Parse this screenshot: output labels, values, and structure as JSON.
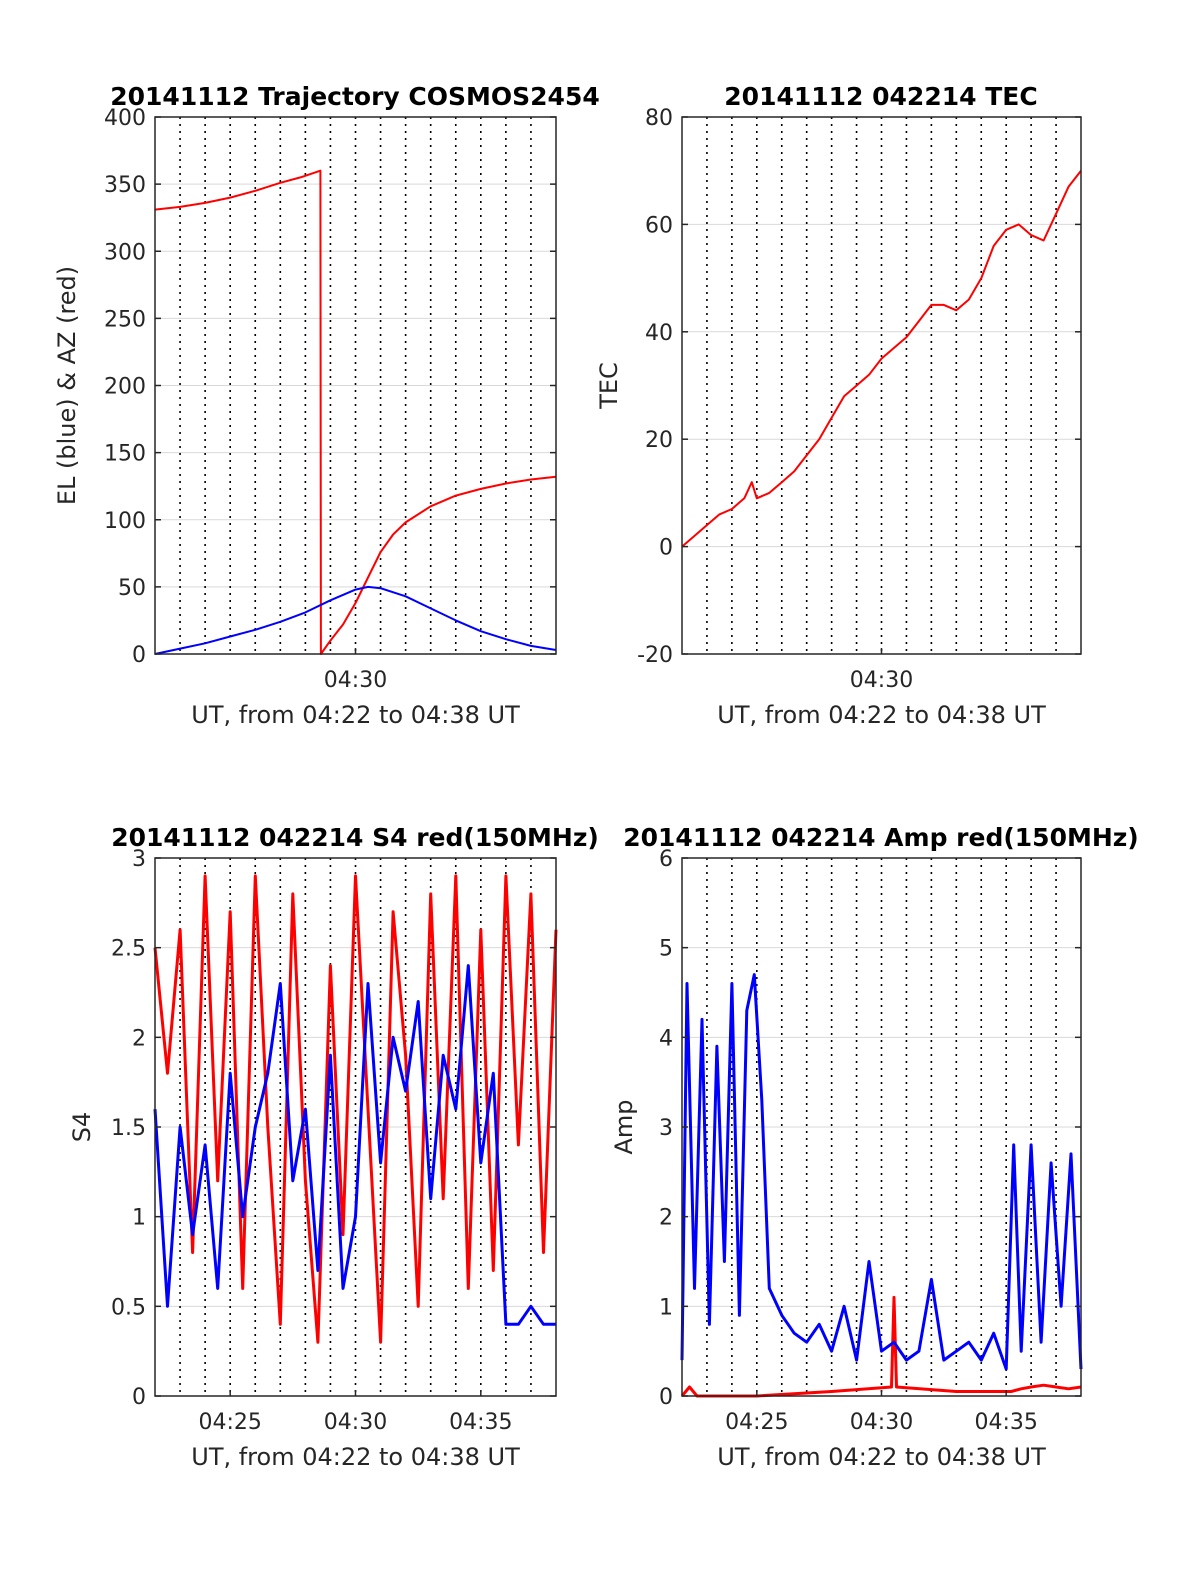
{
  "figure": {
    "x_axis_label": "UT, from 04:22 to 04:38 UT",
    "colors": {
      "azimuth": "#ff0000",
      "elevation": "#0000ff",
      "red_series": "#ff0000",
      "blue_series": "#0000ff",
      "grid": "#d9d9d9",
      "minute_lines": "#000000"
    }
  },
  "chart_data": [
    {
      "type": "line",
      "title": "20141112 Trajectory COSMOS2454",
      "xlabel": "UT, from 04:22 to 04:38 UT",
      "ylabel": "EL (blue) & AZ (red)",
      "xlim_minutes": [
        22,
        38
      ],
      "ylim": [
        0,
        400
      ],
      "yticks": [
        0,
        50,
        100,
        150,
        200,
        250,
        300,
        350,
        400
      ],
      "xticks": [
        {
          "minute": 30,
          "label": "04:30"
        }
      ],
      "grid": true,
      "dotted_minute_lines": true,
      "series": [
        {
          "color": "#ff0000",
          "x_minutes": [
            22.0,
            23.0,
            24.0,
            25.0,
            26.0,
            27.0,
            27.8,
            28.6,
            28.62,
            29.0,
            29.5,
            30.0,
            30.5,
            31.0,
            31.5,
            32.0,
            33.0,
            34.0,
            35.0,
            36.0,
            37.0,
            38.0
          ],
          "values": [
            331,
            333,
            336,
            340,
            345,
            351,
            355,
            360,
            0,
            10,
            22,
            38,
            57,
            76,
            89,
            98,
            110,
            118,
            123,
            127,
            130,
            132
          ]
        },
        {
          "color": "#0000ff",
          "x_minutes": [
            22.0,
            23.0,
            24.0,
            25.0,
            26.0,
            27.0,
            28.0,
            29.0,
            30.0,
            30.5,
            31.0,
            32.0,
            33.0,
            34.0,
            35.0,
            36.0,
            37.0,
            38.0
          ],
          "values": [
            0,
            4,
            8,
            13,
            18,
            24,
            31,
            40,
            48,
            50,
            49,
            43,
            34,
            25,
            17,
            11,
            6,
            3
          ]
        }
      ]
    },
    {
      "type": "line",
      "title": "20141112 042214 TEC",
      "xlabel": "UT, from 04:22 to 04:38 UT",
      "ylabel": "TEC",
      "xlim_minutes": [
        22,
        38
      ],
      "ylim": [
        -20,
        80
      ],
      "yticks": [
        -20,
        0,
        20,
        40,
        60,
        80
      ],
      "xticks": [
        {
          "minute": 30,
          "label": "04:30"
        }
      ],
      "grid": true,
      "dotted_minute_lines": true,
      "series": [
        {
          "color": "#ff0000",
          "x_minutes": [
            22.0,
            22.5,
            23.0,
            23.5,
            24.0,
            24.5,
            24.8,
            25.0,
            25.5,
            26.0,
            26.5,
            27.0,
            27.5,
            28.0,
            28.5,
            29.0,
            29.5,
            30.0,
            30.5,
            31.0,
            31.5,
            32.0,
            32.5,
            33.0,
            33.5,
            34.0,
            34.5,
            35.0,
            35.5,
            36.0,
            36.5,
            37.0,
            37.5,
            38.0
          ],
          "values": [
            0,
            2,
            4,
            6,
            7,
            9,
            12,
            9,
            10,
            12,
            14,
            17,
            20,
            24,
            28,
            30,
            32,
            35,
            37,
            39,
            42,
            45,
            45,
            44,
            46,
            50,
            56,
            59,
            60,
            58,
            57,
            62,
            67,
            70
          ]
        }
      ]
    },
    {
      "type": "line",
      "title": "20141112 042214 S4 red(150MHz)",
      "xlabel": "UT, from 04:22 to 04:38 UT",
      "ylabel": "S4",
      "xlim_minutes": [
        22,
        38
      ],
      "ylim": [
        0,
        3
      ],
      "yticks": [
        0,
        0.5,
        1,
        1.5,
        2,
        2.5,
        3
      ],
      "xticks": [
        {
          "minute": 25,
          "label": "04:25"
        },
        {
          "minute": 30,
          "label": "04:30"
        },
        {
          "minute": 35,
          "label": "04:35"
        }
      ],
      "grid": true,
      "dotted_minute_lines": true,
      "series": [
        {
          "color": "#ff0000",
          "x_minutes": [
            22.0,
            22.5,
            23.0,
            23.5,
            24.0,
            24.5,
            25.0,
            25.5,
            26.0,
            26.5,
            27.0,
            27.5,
            28.0,
            28.5,
            29.0,
            29.5,
            30.0,
            30.5,
            31.0,
            31.5,
            32.0,
            32.5,
            33.0,
            33.5,
            34.0,
            34.5,
            35.0,
            35.5,
            36.0,
            36.5,
            37.0,
            37.5,
            38.0
          ],
          "values": [
            2.5,
            1.8,
            2.6,
            0.8,
            2.9,
            1.2,
            2.7,
            0.6,
            2.9,
            1.5,
            0.4,
            2.8,
            1.2,
            0.3,
            2.4,
            0.9,
            2.9,
            1.6,
            0.3,
            2.7,
            1.9,
            0.5,
            2.8,
            1.1,
            2.9,
            0.6,
            2.6,
            0.7,
            2.9,
            1.4,
            2.8,
            0.8,
            2.6
          ]
        },
        {
          "color": "#0000ff",
          "x_minutes": [
            22.0,
            22.5,
            23.0,
            23.5,
            24.0,
            24.5,
            25.0,
            25.5,
            26.0,
            26.5,
            27.0,
            27.5,
            28.0,
            28.5,
            29.0,
            29.5,
            30.0,
            30.5,
            31.0,
            31.5,
            32.0,
            32.5,
            33.0,
            33.5,
            34.0,
            34.5,
            35.0,
            35.5,
            36.0,
            36.5,
            37.0,
            37.5,
            38.0
          ],
          "values": [
            1.6,
            0.5,
            1.5,
            0.9,
            1.4,
            0.6,
            1.8,
            1.0,
            1.5,
            1.8,
            2.3,
            1.2,
            1.6,
            0.7,
            1.9,
            0.6,
            1.0,
            2.3,
            1.3,
            2.0,
            1.7,
            2.2,
            1.1,
            1.9,
            1.6,
            2.4,
            1.3,
            1.8,
            0.4,
            0.4,
            0.5,
            0.4,
            0.4
          ]
        }
      ]
    },
    {
      "type": "line",
      "title": "20141112 042214 Amp red(150MHz)",
      "xlabel": "UT, from 04:22 to 04:38 UT",
      "ylabel": "Amp",
      "xlim_minutes": [
        22,
        38
      ],
      "ylim": [
        0,
        6
      ],
      "yticks": [
        0,
        1,
        2,
        3,
        4,
        5,
        6
      ],
      "xticks": [
        {
          "minute": 25,
          "label": "04:25"
        },
        {
          "minute": 30,
          "label": "04:30"
        },
        {
          "minute": 35,
          "label": "04:35"
        }
      ],
      "grid": true,
      "dotted_minute_lines": true,
      "series": [
        {
          "color": "#ff0000",
          "x_minutes": [
            22.0,
            22.3,
            22.6,
            25.0,
            28.0,
            30.4,
            30.5,
            30.6,
            33.0,
            35.2,
            35.6,
            36.0,
            36.5,
            37.0,
            37.5,
            38.0
          ],
          "values": [
            0.0,
            0.1,
            0.0,
            0.0,
            0.05,
            0.1,
            1.1,
            0.1,
            0.05,
            0.05,
            0.08,
            0.1,
            0.12,
            0.1,
            0.08,
            0.1
          ]
        },
        {
          "color": "#0000ff",
          "x_minutes": [
            22.0,
            22.2,
            22.5,
            22.8,
            23.1,
            23.4,
            23.7,
            24.0,
            24.3,
            24.6,
            24.9,
            25.2,
            25.5,
            26.0,
            26.5,
            27.0,
            27.5,
            28.0,
            28.5,
            29.0,
            29.5,
            30.0,
            30.5,
            31.0,
            31.5,
            32.0,
            32.5,
            33.0,
            33.5,
            34.0,
            34.5,
            35.0,
            35.3,
            35.6,
            36.0,
            36.4,
            36.8,
            37.2,
            37.6,
            38.0
          ],
          "values": [
            0.4,
            4.6,
            1.2,
            4.2,
            0.8,
            3.9,
            1.5,
            4.6,
            0.9,
            4.3,
            4.7,
            3.3,
            1.2,
            0.9,
            0.7,
            0.6,
            0.8,
            0.5,
            1.0,
            0.4,
            1.5,
            0.5,
            0.6,
            0.4,
            0.5,
            1.3,
            0.4,
            0.5,
            0.6,
            0.4,
            0.7,
            0.3,
            2.8,
            0.5,
            2.8,
            0.6,
            2.6,
            1.0,
            2.7,
            0.3
          ]
        }
      ]
    }
  ]
}
